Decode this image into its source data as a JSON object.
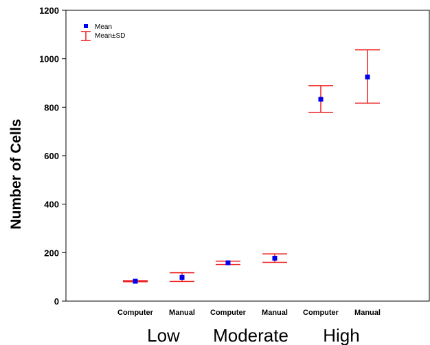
{
  "chart_data": {
    "type": "scatter",
    "ylabel": "Number of Cells",
    "ylim": [
      0,
      1200
    ],
    "yticks": [
      "0",
      "200",
      "400",
      "600",
      "800",
      "1000",
      "1200"
    ],
    "categories": [
      "Computer",
      "Manual",
      "Computer",
      "Manual",
      "Computer",
      "Manual"
    ],
    "groups": [
      "Low",
      "Moderate",
      "High"
    ],
    "means": [
      82,
      98,
      158,
      177,
      833,
      925
    ],
    "sd_lower": [
      80,
      81,
      151,
      160,
      779,
      817
    ],
    "sd_upper": [
      85,
      117,
      165,
      195,
      889,
      1037
    ],
    "legend": {
      "mean": "Mean",
      "range": "Mean±SD",
      "position": "top-left"
    },
    "colors": {
      "mean_marker": "#0000ee",
      "error_bar": "#ee1c1c"
    }
  }
}
